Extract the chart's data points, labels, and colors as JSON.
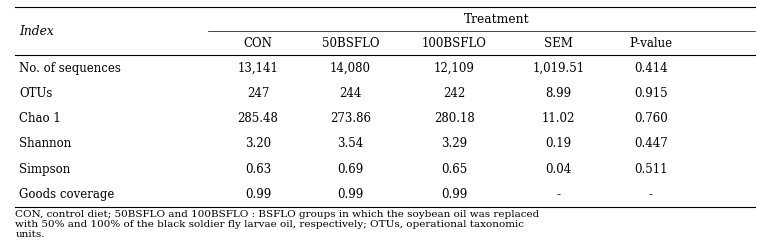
{
  "col_header_top": "Treatment",
  "col_header_sub": [
    "CON",
    "50BSFLO",
    "100BSFLO",
    "SEM",
    "P-value"
  ],
  "row_header": "Index",
  "rows": [
    [
      "No. of sequences",
      "13,141",
      "14,080",
      "12,109",
      "1,019.51",
      "0.414"
    ],
    [
      "OTUs",
      "247",
      "244",
      "242",
      "8.99",
      "0.915"
    ],
    [
      "Chao 1",
      "285.48",
      "273.86",
      "280.18",
      "11.02",
      "0.760"
    ],
    [
      "Shannon",
      "3.20",
      "3.54",
      "3.29",
      "0.19",
      "0.447"
    ],
    [
      "Simpson",
      "0.63",
      "0.69",
      "0.65",
      "0.04",
      "0.511"
    ],
    [
      "Goods coverage",
      "0.99",
      "0.99",
      "0.99",
      "-",
      "-"
    ]
  ],
  "footnote": "CON, control diet; 50BSFLO and 100BSFLO : BSFLO groups in which the soybean oil was replaced\nwith 50% and 100% of the black soldier fly larvae oil, respectively; OTUs, operational taxonomic\nunits.",
  "bg_color": "#ffffff",
  "border_color": "#000000",
  "font_size": 8.5,
  "footnote_font_size": 7.5,
  "header_font_size": 8.8
}
